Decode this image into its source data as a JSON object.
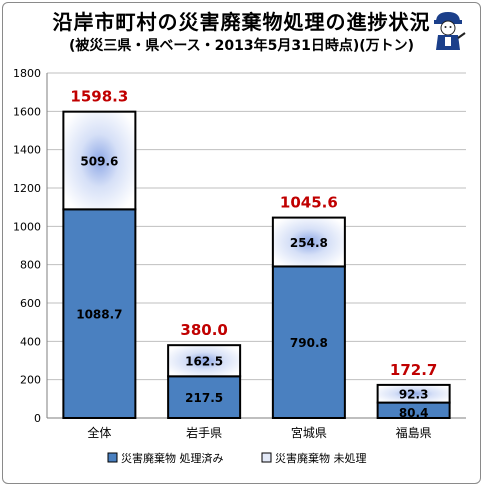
{
  "chart_data": {
    "type": "bar",
    "stacked": true,
    "title": "沿岸市町村の災害廃棄物処理の進捗状況",
    "subtitle": "(被災三県・県ベース・2013年5月31日時点)(万トン)",
    "categories": [
      "全体",
      "岩手県",
      "宮城県",
      "福島県"
    ],
    "series": [
      {
        "name": "災害廃棄物 処理済み",
        "values": [
          1088.7,
          217.5,
          790.8,
          80.4
        ],
        "color": "#4a80c0"
      },
      {
        "name": "災害廃棄物 未処理",
        "values": [
          509.6,
          162.5,
          254.8,
          92.3
        ],
        "color": "#ffffff"
      }
    ],
    "totals": [
      "1598.3",
      "380.0",
      "1045.6",
      "172.7"
    ],
    "total_color": "#c00000",
    "ylim": [
      0,
      1800
    ],
    "yticks": [
      0,
      200,
      400,
      600,
      800,
      1000,
      1200,
      1400,
      1600,
      1800
    ],
    "grid": true,
    "legend_position": "bottom"
  }
}
